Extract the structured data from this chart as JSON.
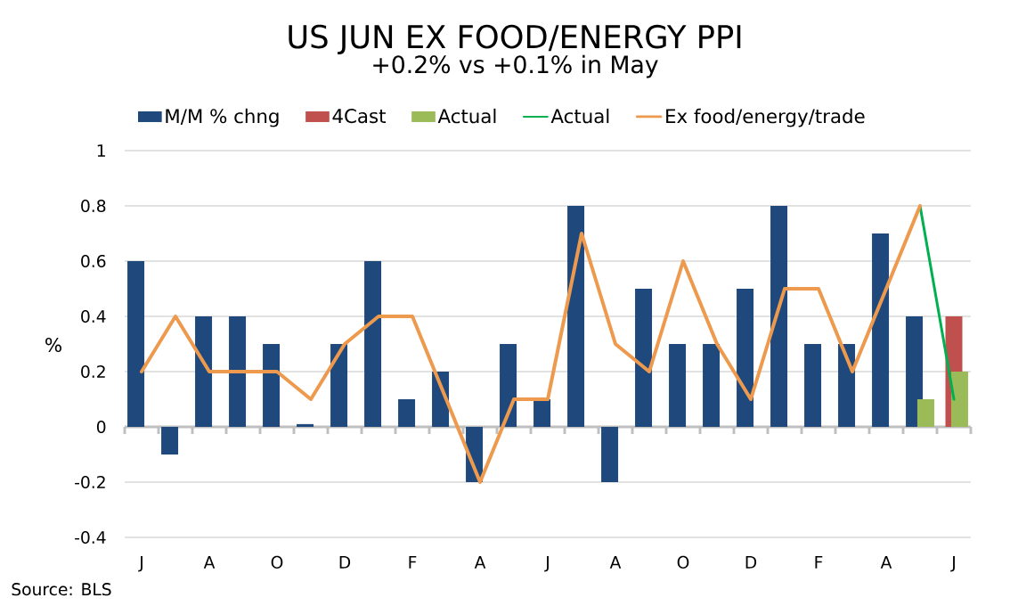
{
  "chart_data": {
    "type": "bar",
    "title": "US JUN EX FOOD/ENERGY PPI",
    "subtitle": "+0.2% vs +0.1% in May",
    "ylabel": "%",
    "categories": [
      "J",
      null,
      "A",
      null,
      "O",
      null,
      "D",
      null,
      "F",
      null,
      "A",
      null,
      "J",
      null,
      "A",
      null,
      "O",
      null,
      "D",
      null,
      "F",
      null,
      "A",
      null,
      "J"
    ],
    "series": [
      {
        "name": "M/M % chng",
        "color": "#1f497d",
        "values": [
          0.6,
          -0.1,
          0.4,
          0.4,
          0.3,
          0.01,
          0.3,
          0.6,
          0.1,
          0.2,
          -0.2,
          0.3,
          0.1,
          0.8,
          -0.2,
          0.5,
          0.3,
          0.3,
          0.5,
          0.8,
          0.3,
          0.3,
          0.7,
          0.4,
          null
        ]
      },
      {
        "name": "4Cast",
        "color": "#c0504d",
        "values": [
          null,
          null,
          null,
          null,
          null,
          null,
          null,
          null,
          null,
          null,
          null,
          null,
          null,
          null,
          null,
          null,
          null,
          null,
          null,
          null,
          null,
          null,
          null,
          null,
          0.4
        ]
      },
      {
        "name": "Actual",
        "color": "#9bbb59",
        "values": [
          null,
          null,
          null,
          null,
          null,
          null,
          null,
          null,
          null,
          null,
          null,
          null,
          null,
          null,
          null,
          null,
          null,
          null,
          null,
          null,
          null,
          null,
          null,
          0.1,
          0.2
        ]
      },
      {
        "name": "Actual",
        "type": "line",
        "color": "#00b050",
        "values": [
          null,
          null,
          null,
          null,
          null,
          null,
          null,
          null,
          null,
          null,
          null,
          null,
          null,
          null,
          null,
          null,
          null,
          null,
          null,
          null,
          null,
          null,
          null,
          0.8,
          0.1
        ]
      },
      {
        "name": "Ex food/energy/trade",
        "type": "line",
        "color": "#ee9a4e",
        "values": [
          0.2,
          0.4,
          0.2,
          0.2,
          0.2,
          0.1,
          0.3,
          0.4,
          0.4,
          0.1,
          -0.2,
          0.1,
          0.1,
          0.7,
          0.3,
          0.2,
          0.6,
          0.3,
          0.1,
          0.5,
          0.5,
          0.2,
          0.5,
          0.8,
          null
        ]
      }
    ],
    "ylim": [
      -0.4,
      1
    ],
    "yticks": [
      -0.4,
      -0.2,
      0,
      0.2,
      0.4,
      0.6,
      0.8,
      1
    ],
    "grid": "y",
    "legend": "top",
    "annotations": [
      "Source: BLS"
    ]
  }
}
